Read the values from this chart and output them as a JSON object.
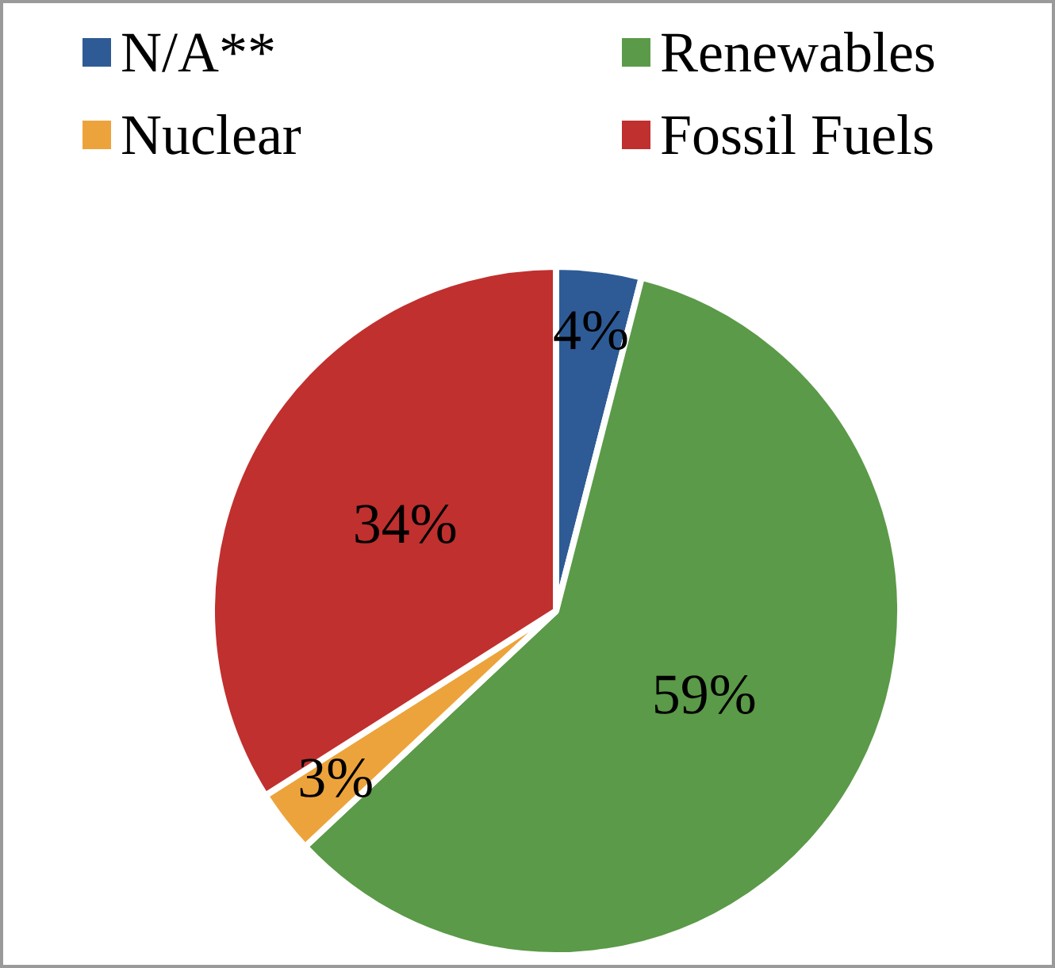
{
  "chart_data": {
    "type": "pie",
    "categories": [
      "N/A**",
      "Renewables",
      "Nuclear",
      "Fossil Fuels"
    ],
    "values": [
      4,
      59,
      3,
      34
    ],
    "colors": [
      "#2e5b95",
      "#5b9a48",
      "#eda33b",
      "#c0302e"
    ],
    "value_labels": [
      "4%",
      "59%",
      "3%",
      "34%"
    ],
    "legend": "top"
  }
}
